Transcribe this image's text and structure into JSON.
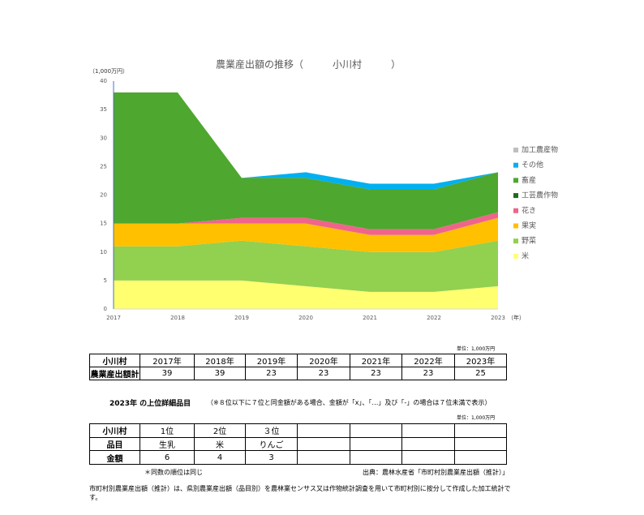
{
  "chart_data": {
    "type": "stacked-area",
    "title": "農業産出額の推移（　　　小川村　　　）",
    "y_label": "（1,000万円）",
    "x_label": "（年）",
    "categories": [
      "2017",
      "2018",
      "2019",
      "2020",
      "2021",
      "2022",
      "2023"
    ],
    "ylim": [
      0,
      40
    ],
    "yticks": [
      0,
      5,
      10,
      15,
      20,
      25,
      30,
      35,
      40
    ],
    "series": [
      {
        "name": "米",
        "color": "#ffff70",
        "values": [
          5,
          5,
          5,
          4,
          3,
          3,
          4
        ]
      },
      {
        "name": "野菜",
        "color": "#92d050",
        "values": [
          6,
          6,
          7,
          7,
          7,
          7,
          8
        ]
      },
      {
        "name": "果実",
        "color": "#ffc000",
        "values": [
          4,
          4,
          3,
          4,
          3,
          3,
          4
        ]
      },
      {
        "name": "花き",
        "color": "#f0648c",
        "values": [
          0,
          0,
          1,
          1,
          1,
          1,
          1
        ]
      },
      {
        "name": "工芸農作物",
        "color": "#1e6b1e",
        "values": [
          0,
          0,
          0,
          0,
          0,
          0,
          0
        ]
      },
      {
        "name": "畜産",
        "color": "#4ea72e",
        "values": [
          23,
          23,
          7,
          7,
          7,
          7,
          7
        ]
      },
      {
        "name": "その他",
        "color": "#00b0f0",
        "values": [
          0,
          0,
          0,
          1,
          1,
          1,
          0
        ]
      },
      {
        "name": "加工農産物",
        "color": "#bfbfbf",
        "values": [
          0,
          0,
          0,
          0,
          0,
          0,
          0
        ]
      }
    ]
  },
  "total_table": {
    "unit": "単位：1,000万円",
    "header": [
      "小川村",
      "2017年",
      "2018年",
      "2019年",
      "2020年",
      "2021年",
      "2022年",
      "2023年"
    ],
    "row": [
      "農業産出額計",
      39,
      39,
      23,
      23,
      23,
      23,
      25
    ]
  },
  "top_items": {
    "title": "2023年 の上位詳細品目",
    "note": "（※８位以下に７位と同金額がある場合、金額が「x」、「…」及び「-」の場合は７位未満で表示）",
    "unit": "単位：1,000万円",
    "header": [
      "小川村",
      "1位",
      "2位",
      "３位"
    ],
    "rows": [
      [
        "品目",
        "生乳",
        "米",
        "りんご"
      ],
      [
        "金額",
        6,
        4,
        3
      ]
    ]
  },
  "footnote": "＊同数の順位は同じ",
  "source": "出典：農林水産省「市町村別農業産出額（推計）」",
  "description": "市町村別農業産出額（推計）は、県別農業産出額（品目別）を農林業センサス又は作物統計調査を用いて市町村別に按分して作成した加工統計です。"
}
